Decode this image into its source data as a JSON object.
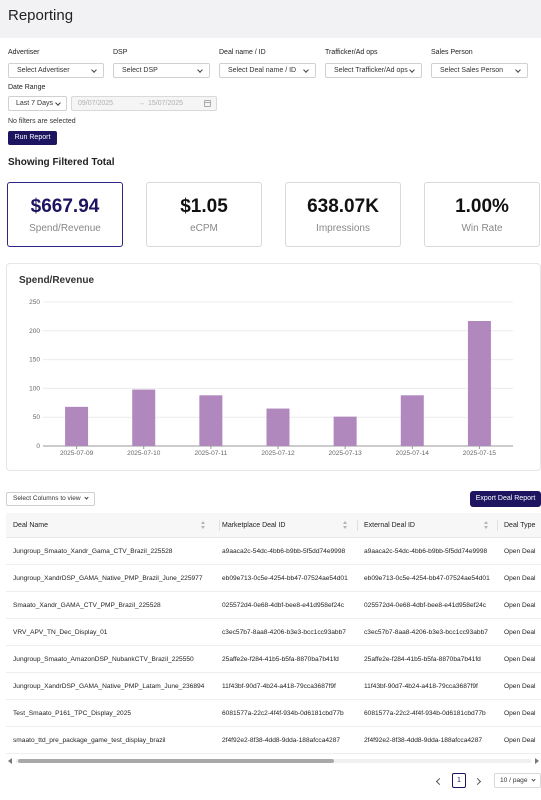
{
  "header": {
    "title": "Reporting"
  },
  "filters": {
    "advertiser": {
      "label": "Advertiser",
      "value": "Select Advertiser"
    },
    "dsp": {
      "label": "DSP",
      "value": "Select DSP"
    },
    "deal": {
      "label": "Deal name / ID",
      "value": "Select Deal name / ID"
    },
    "trafficker": {
      "label": "Trafficker/Ad ops",
      "value": "Select Trafficker/Ad ops"
    },
    "sales": {
      "label": "Sales Person",
      "value": "Select Sales Person"
    },
    "date_range": {
      "label": "Date Range",
      "preset": "Last 7 Days",
      "start": "09/07/2025",
      "separator": "→",
      "end": "15/07/2025"
    },
    "status_text": "No filters are selected",
    "run_label": "Run Report"
  },
  "summary": {
    "title": "Showing Filtered Total",
    "cards": [
      {
        "value": "$667.94",
        "label": "Spend/Revenue"
      },
      {
        "value": "$1.05",
        "label": "eCPM"
      },
      {
        "value": "638.07K",
        "label": "Impressions"
      },
      {
        "value": "1.00%",
        "label": "Win Rate"
      }
    ]
  },
  "chart_data": {
    "type": "bar",
    "title": "Spend/Revenue",
    "categories": [
      "2025-07-09",
      "2025-07-10",
      "2025-07-11",
      "2025-07-12",
      "2025-07-13",
      "2025-07-14",
      "2025-07-15"
    ],
    "values": [
      68,
      98,
      88,
      65,
      51,
      88,
      217
    ],
    "ylim": [
      0,
      250
    ],
    "yticks": [
      0,
      50,
      100,
      150,
      200,
      250
    ],
    "grid": true,
    "color": "#b088be"
  },
  "table": {
    "select_columns_label": "Select Columns to view",
    "export_label": "Export Deal Report",
    "columns": [
      "Deal Name",
      "Marketplace Deal ID",
      "External Deal ID",
      "Deal Type"
    ],
    "rows": [
      [
        "Jungroup_Smaato_Xandr_Gama_CTV_Brazil_225528",
        "a9aaca2c-54dc-4bb6-b9bb-5f5dd74e9998",
        "a9aaca2c-54dc-4bb6-b9bb-5f5dd74e9998",
        "Open Deal"
      ],
      [
        "Jungroup_XandrDSP_GAMA_Native_PMP_Brazil_June_225977",
        "eb09e713-0c5e-4254-bb47-07524ae54d01",
        "eb09e713-0c5e-4254-bb47-07524ae54d01",
        "Open Deal"
      ],
      [
        "Smaato_Xandr_GAMA_CTV_PMP_Brazil_225528",
        "025572d4-0e68-4dbf-bee8-e41d958ef24c",
        "025572d4-0e68-4dbf-bee8-e41d958ef24c",
        "Open Deal"
      ],
      [
        "VRV_APV_TN_Dec_Display_01",
        "c3ec57b7-8aa8-4206-b3e3-bcc1cc93abb7",
        "c3ec57b7-8aa8-4206-b3e3-bcc1cc93abb7",
        "Open Deal"
      ],
      [
        "Jungroup_Smaato_AmazonDSP_NubankCTV_Brazil_225550",
        "25affe2e-f284-41b5-b5fa-8870ba7b41fd",
        "25affe2e-f284-41b5-b5fa-8870ba7b41fd",
        "Open Deal"
      ],
      [
        "Jungroup_XandrDSP_GAMA_Native_PMP_Latam_June_236894",
        "11f43bf-90d7-4b24-a418-79cca3687f9f",
        "11f43bf-90d7-4b24-a418-79cca3687f9f",
        "Open Deal"
      ],
      [
        "Test_Smaato_P161_TPC_Display_2025",
        "6081577a-22c2-4f4f-934b-0d6181cbd77b",
        "6081577a-22c2-4f4f-934b-0d6181cbd77b",
        "Open Deal"
      ],
      [
        "smaato_ttd_pre_package_game_test_display_brazil",
        "2f4f92e2-8f38-4dd8-9dda-188afcca4287",
        "2f4f92e2-8f38-4dd8-9dda-188afcca4287",
        "Open Deal"
      ]
    ]
  },
  "pagination": {
    "page": "1",
    "page_size": "10 / page"
  }
}
